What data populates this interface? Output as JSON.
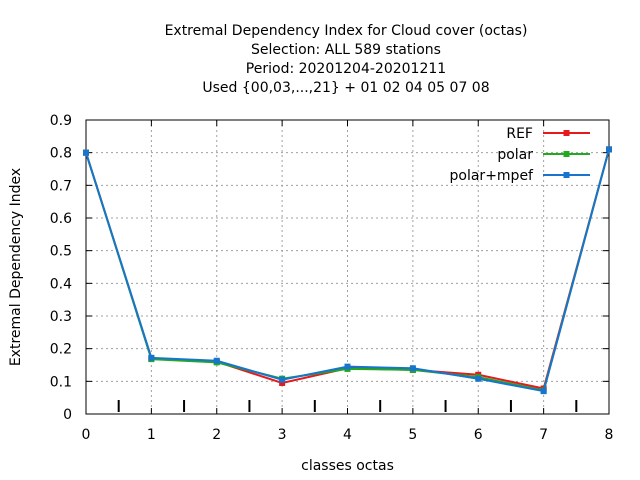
{
  "chart_data": {
    "type": "line",
    "title_lines": [
      "Extremal Dependency Index  for Cloud cover (octas)",
      "Selection: ALL    589 stations",
      "Period: 20201204-20201211",
      "Used {00,03,...,21} + 01 02 04 05 07 08"
    ],
    "xlabel": "classes octas",
    "ylabel": "Extremal Dependency Index",
    "x": [
      0,
      1,
      2,
      3,
      4,
      5,
      6,
      7,
      8
    ],
    "x_ticks": [
      "0",
      "1",
      "2",
      "3",
      "4",
      "5",
      "6",
      "7",
      "8"
    ],
    "y_ticks": [
      "0",
      "0.1",
      "0.2",
      "0.3",
      "0.4",
      "0.5",
      "0.6",
      "0.7",
      "0.8",
      "0.9"
    ],
    "xlim": [
      0,
      8
    ],
    "ylim": [
      0,
      0.9
    ],
    "grid": true,
    "legend_position": "top-right",
    "series": [
      {
        "name": "REF",
        "color": "#e41a1c",
        "values": [
          0.8,
          0.17,
          0.16,
          0.095,
          0.14,
          0.135,
          0.12,
          0.078,
          0.81
        ]
      },
      {
        "name": "polar",
        "color": "#1faa1f",
        "values": [
          0.8,
          0.168,
          0.158,
          0.108,
          0.138,
          0.135,
          0.113,
          0.072,
          0.81
        ]
      },
      {
        "name": "polar+mpef",
        "color": "#1874cd",
        "values": [
          0.8,
          0.172,
          0.163,
          0.105,
          0.145,
          0.14,
          0.108,
          0.07,
          0.81
        ]
      }
    ]
  }
}
